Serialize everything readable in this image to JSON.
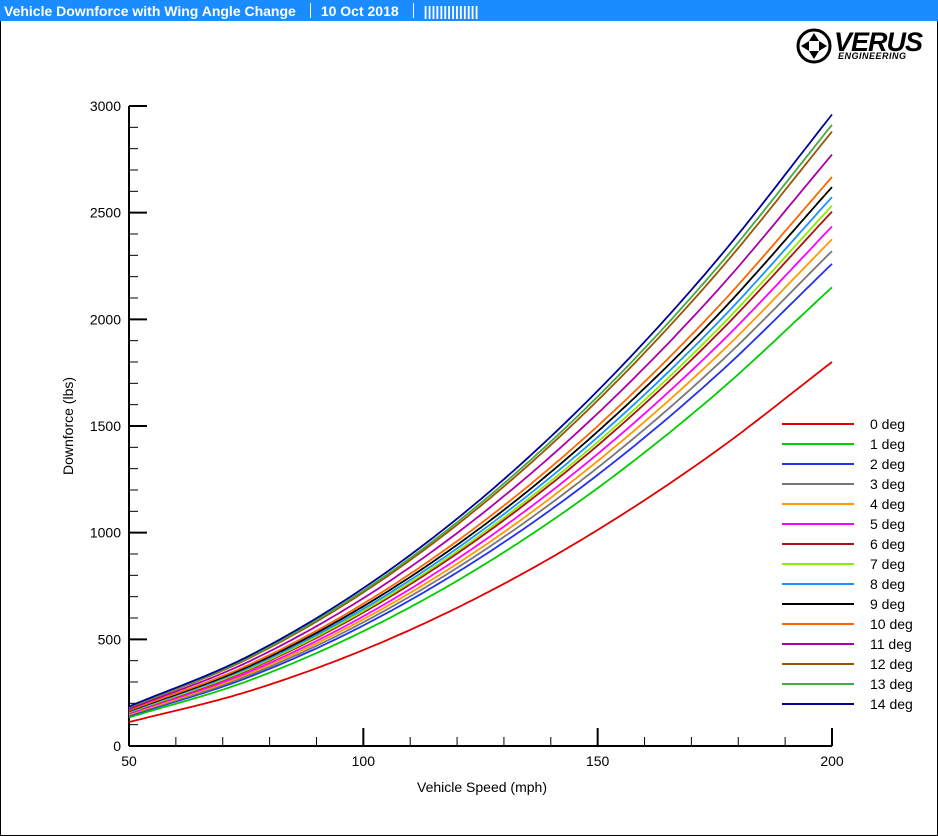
{
  "header": {
    "title": "Vehicle Downforce with Wing Angle Change",
    "date": "10 Oct 2018",
    "barcode": "||||||||||||||"
  },
  "logo": {
    "name": "VERUS",
    "subtitle": "ENGINEERING",
    "icon": "verus-diamond-logo-icon"
  },
  "chart_data": {
    "type": "line",
    "xlabel": "Vehicle Speed (mph)",
    "ylabel": "Downforce (lbs)",
    "xlim": [
      50,
      200
    ],
    "ylim": [
      0,
      3000
    ],
    "xticks": [
      50,
      100,
      150,
      200
    ],
    "yticks": [
      0,
      500,
      1000,
      1500,
      2000,
      2500,
      3000
    ],
    "grid": false,
    "legend": "right",
    "x": [
      50,
      75,
      100,
      125,
      150,
      175,
      200
    ],
    "series": [
      {
        "name": "0 deg",
        "color": "#e00000",
        "values": [
          112,
          253,
          450,
          703,
          1013,
          1378,
          1800
        ]
      },
      {
        "name": "1 deg",
        "color": "#00cc00",
        "values": [
          134,
          302,
          538,
          840,
          1209,
          1646,
          2150
        ]
      },
      {
        "name": "2 deg",
        "color": "#2233ee",
        "values": [
          141,
          318,
          565,
          883,
          1271,
          1730,
          2260
        ]
      },
      {
        "name": "3 deg",
        "color": "#777777",
        "values": [
          145,
          326,
          580,
          906,
          1305,
          1776,
          2320
        ]
      },
      {
        "name": "4 deg",
        "color": "#ff9900",
        "values": [
          148,
          334,
          594,
          927,
          1336,
          1818,
          2375
        ]
      },
      {
        "name": "5 deg",
        "color": "#ff00ff",
        "values": [
          152,
          342,
          608,
          951,
          1369,
          1864,
          2435
        ]
      },
      {
        "name": "6 deg",
        "color": "#aa1111",
        "values": [
          157,
          352,
          626,
          979,
          1409,
          1918,
          2505
        ]
      },
      {
        "name": "7 deg",
        "color": "#88ee00",
        "values": [
          158,
          356,
          633,
          990,
          1425,
          1940,
          2533
        ]
      },
      {
        "name": "8 deg",
        "color": "#1e90ff",
        "values": [
          161,
          362,
          643,
          1005,
          1448,
          1970,
          2573
        ]
      },
      {
        "name": "9 deg",
        "color": "#000000",
        "values": [
          164,
          368,
          655,
          1023,
          1474,
          2006,
          2620
        ]
      },
      {
        "name": "10 deg",
        "color": "#ff6600",
        "values": [
          167,
          375,
          667,
          1042,
          1500,
          2042,
          2667
        ]
      },
      {
        "name": "11 deg",
        "color": "#aa00aa",
        "values": [
          173,
          390,
          693,
          1083,
          1559,
          2122,
          2772
        ]
      },
      {
        "name": "12 deg",
        "color": "#995500",
        "values": [
          180,
          405,
          720,
          1125,
          1620,
          2205,
          2880
        ]
      },
      {
        "name": "13 deg",
        "color": "#44aa44",
        "values": [
          182,
          410,
          728,
          1138,
          1638,
          2230,
          2912
        ]
      },
      {
        "name": "14 deg",
        "color": "#000099",
        "values": [
          185,
          416,
          740,
          1156,
          1665,
          2266,
          2960
        ]
      }
    ]
  }
}
